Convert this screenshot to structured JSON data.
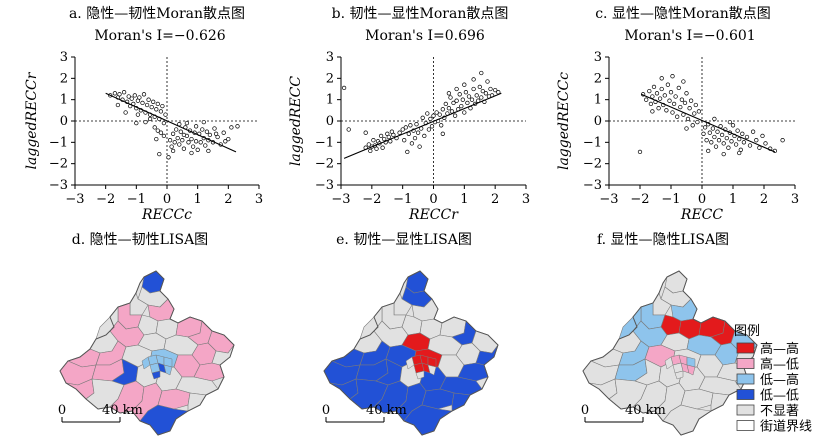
{
  "chart_data": [
    {
      "type": "scatter",
      "title": "a. 隐性—韧性Moran散点图",
      "annotation": "Moran's I=−0.626",
      "xlabel": "RECCc",
      "ylabel": "laggedRECCr",
      "xlim": [
        -3,
        3
      ],
      "ylim": [
        -3,
        3
      ],
      "xticks": [
        "−3",
        "−2",
        "−1",
        "0",
        "1",
        "2",
        "3"
      ],
      "yticks": [
        "−3",
        "−2",
        "−1",
        "0",
        "1",
        "2",
        "3"
      ],
      "fit_line": [
        [
          -2.0,
          1.3
        ],
        [
          2.25,
          -1.45
        ]
      ],
      "points": [
        [
          -1.85,
          1.2
        ],
        [
          -1.7,
          1.3
        ],
        [
          -1.6,
          1.1
        ],
        [
          -1.55,
          1.25
        ],
        [
          -1.45,
          1.0
        ],
        [
          -1.4,
          1.35
        ],
        [
          -1.3,
          0.9
        ],
        [
          -1.25,
          1.15
        ],
        [
          -1.2,
          0.7
        ],
        [
          -1.15,
          1.05
        ],
        [
          -1.1,
          0.8
        ],
        [
          -1.05,
          1.2
        ],
        [
          -1.0,
          0.6
        ],
        [
          -0.95,
          0.95
        ],
        [
          -0.9,
          1.1
        ],
        [
          -0.85,
          0.5
        ],
        [
          -0.8,
          0.85
        ],
        [
          -0.75,
          1.25
        ],
        [
          -0.7,
          0.4
        ],
        [
          -0.65,
          0.75
        ],
        [
          -0.6,
          1.0
        ],
        [
          -0.55,
          0.3
        ],
        [
          -0.5,
          0.65
        ],
        [
          -0.45,
          0.9
        ],
        [
          -0.4,
          0.2
        ],
        [
          -0.35,
          0.55
        ],
        [
          -0.3,
          0.8
        ],
        [
          -0.25,
          0.1
        ],
        [
          -0.2,
          0.45
        ],
        [
          -0.15,
          0.7
        ],
        [
          -0.1,
          -0.1
        ],
        [
          -0.05,
          0.3
        ],
        [
          -1.35,
          0.4
        ],
        [
          -0.95,
          0.3
        ],
        [
          -0.7,
          -0.05
        ],
        [
          -0.55,
          0.1
        ],
        [
          -1.0,
          -0.1
        ],
        [
          -1.6,
          0.75
        ],
        [
          -0.4,
          -0.3
        ],
        [
          -0.3,
          -0.45
        ],
        [
          -0.2,
          -0.55
        ],
        [
          -0.35,
          -0.85
        ],
        [
          -0.25,
          -1.55
        ],
        [
          0.1,
          -0.9
        ],
        [
          0.15,
          -1.2
        ],
        [
          0.2,
          -0.6
        ],
        [
          0.25,
          -1.0
        ],
        [
          0.3,
          -0.4
        ],
        [
          0.35,
          -0.8
        ],
        [
          0.4,
          -1.1
        ],
        [
          0.45,
          -0.5
        ],
        [
          0.5,
          -0.9
        ],
        [
          0.55,
          -1.3
        ],
        [
          0.6,
          -0.3
        ],
        [
          0.65,
          -0.7
        ],
        [
          0.7,
          -1.0
        ],
        [
          0.75,
          -0.45
        ],
        [
          0.8,
          -0.85
        ],
        [
          0.85,
          -1.2
        ],
        [
          0.9,
          -0.55
        ],
        [
          0.95,
          -0.95
        ],
        [
          1.0,
          -1.35
        ],
        [
          1.05,
          -0.6
        ],
        [
          1.1,
          -1.0
        ],
        [
          1.15,
          -0.4
        ],
        [
          1.2,
          -0.8
        ],
        [
          1.25,
          -1.15
        ],
        [
          1.3,
          -0.5
        ],
        [
          1.35,
          -0.9
        ],
        [
          1.4,
          -0.65
        ],
        [
          1.5,
          -1.0
        ],
        [
          1.55,
          -0.35
        ],
        [
          1.65,
          -0.75
        ],
        [
          1.75,
          -1.1
        ],
        [
          1.85,
          -0.55
        ],
        [
          2.0,
          -0.85
        ],
        [
          2.1,
          -0.3
        ],
        [
          2.3,
          -0.25
        ],
        [
          0.4,
          -0.15
        ],
        [
          0.65,
          -0.1
        ],
        [
          0.95,
          -0.25
        ],
        [
          1.2,
          -0.05
        ],
        [
          0.2,
          -1.4
        ],
        [
          0.8,
          -1.5
        ],
        [
          1.35,
          -1.4
        ],
        [
          0.05,
          -1.7
        ],
        [
          -0.1,
          -0.7
        ],
        [
          0.55,
          -0.65
        ],
        [
          1.6,
          -0.6
        ],
        [
          1.9,
          -0.95
        ]
      ]
    },
    {
      "type": "scatter",
      "title": "b. 韧性—显性Moran散点图",
      "annotation": "Moran's I=0.696",
      "xlabel": "RECCr",
      "ylabel": "laggedRECC",
      "xlim": [
        -3,
        3
      ],
      "ylim": [
        -3,
        3
      ],
      "xticks": [
        "−3",
        "−2",
        "−1",
        "0",
        "1",
        "2",
        "3"
      ],
      "yticks": [
        "−3",
        "−2",
        "−1",
        "0",
        "1",
        "2",
        "3"
      ],
      "fit_line": [
        [
          -2.9,
          -1.75
        ],
        [
          2.2,
          1.3
        ]
      ],
      "points": [
        [
          -2.9,
          1.55
        ],
        [
          -2.2,
          -0.55
        ],
        [
          -2.2,
          -1.25
        ],
        [
          -2.1,
          -1.1
        ],
        [
          -2.05,
          -1.4
        ],
        [
          -2.0,
          -1.2
        ],
        [
          -1.95,
          -0.9
        ],
        [
          -1.9,
          -1.15
        ],
        [
          -1.85,
          -1.3
        ],
        [
          -1.8,
          -0.95
        ],
        [
          -1.75,
          -1.05
        ],
        [
          -1.7,
          -0.7
        ],
        [
          -1.65,
          -1.25
        ],
        [
          -1.6,
          -0.85
        ],
        [
          -1.55,
          -1.0
        ],
        [
          -1.5,
          -0.6
        ],
        [
          -1.45,
          -0.75
        ],
        [
          -1.4,
          -0.95
        ],
        [
          -1.35,
          -0.5
        ],
        [
          -1.3,
          -0.65
        ],
        [
          -1.2,
          -0.8
        ],
        [
          -1.1,
          -0.55
        ],
        [
          -1.0,
          -0.4
        ],
        [
          -0.95,
          -0.9
        ],
        [
          -0.9,
          -0.3
        ],
        [
          -0.85,
          -1.45
        ],
        [
          -0.8,
          -0.6
        ],
        [
          -0.75,
          -0.2
        ],
        [
          -0.7,
          -1.05
        ],
        [
          -0.65,
          -0.45
        ],
        [
          -0.6,
          -0.8
        ],
        [
          -0.55,
          -0.15
        ],
        [
          -0.5,
          -0.55
        ],
        [
          -0.45,
          -1.2
        ],
        [
          -0.4,
          -0.35
        ],
        [
          -0.35,
          0.15
        ],
        [
          -0.3,
          -0.7
        ],
        [
          -0.25,
          -0.1
        ],
        [
          -0.2,
          0.35
        ],
        [
          -0.15,
          -0.4
        ],
        [
          -0.1,
          0.1
        ],
        [
          -0.05,
          -0.25
        ],
        [
          0.0,
          0.25
        ],
        [
          0.05,
          -0.05
        ],
        [
          0.1,
          0.4
        ],
        [
          0.15,
          0.0
        ],
        [
          0.2,
          0.3
        ],
        [
          0.25,
          -0.2
        ],
        [
          0.3,
          0.55
        ],
        [
          0.35,
          0.15
        ],
        [
          0.4,
          0.8
        ],
        [
          0.45,
          0.35
        ],
        [
          0.5,
          0.6
        ],
        [
          0.55,
          1.1
        ],
        [
          0.6,
          0.45
        ],
        [
          0.65,
          0.85
        ],
        [
          0.7,
          0.25
        ],
        [
          0.75,
          0.95
        ],
        [
          0.8,
          0.55
        ],
        [
          0.85,
          1.25
        ],
        [
          0.9,
          0.7
        ],
        [
          0.95,
          1.0
        ],
        [
          1.0,
          0.4
        ],
        [
          1.05,
          1.35
        ],
        [
          1.1,
          0.85
        ],
        [
          1.15,
          1.15
        ],
        [
          1.2,
          0.6
        ],
        [
          1.25,
          1.0
        ],
        [
          1.3,
          1.5
        ],
        [
          1.35,
          0.8
        ],
        [
          1.4,
          1.2
        ],
        [
          1.45,
          0.95
        ],
        [
          1.5,
          1.6
        ],
        [
          1.55,
          1.1
        ],
        [
          1.6,
          1.4
        ],
        [
          1.65,
          0.9
        ],
        [
          1.7,
          1.3
        ],
        [
          1.75,
          1.85
        ],
        [
          1.8,
          1.15
        ],
        [
          1.85,
          1.5
        ],
        [
          1.9,
          1.2
        ],
        [
          2.0,
          1.45
        ],
        [
          2.1,
          1.35
        ],
        [
          1.55,
          2.25
        ],
        [
          1.3,
          1.95
        ],
        [
          1.0,
          1.7
        ],
        [
          0.75,
          1.5
        ],
        [
          0.5,
          1.3
        ],
        [
          -2.75,
          -0.4
        ],
        [
          0.3,
          -0.6
        ]
      ]
    },
    {
      "type": "scatter",
      "title": "c. 显性—隐性Moran散点图",
      "annotation": "Moran's I=−0.601",
      "xlabel": "RECC",
      "ylabel": "laggedRECCc",
      "xlim": [
        -3,
        3
      ],
      "ylim": [
        -3,
        3
      ],
      "xticks": [
        "−3",
        "−2",
        "−1",
        "0",
        "1",
        "2",
        "3"
      ],
      "yticks": [
        "−3",
        "−2",
        "−1",
        "0",
        "1",
        "2",
        "3"
      ],
      "fit_line": [
        [
          -1.95,
          1.25
        ],
        [
          2.35,
          -1.45
        ]
      ],
      "points": [
        [
          -1.9,
          1.25
        ],
        [
          -1.8,
          1.0
        ],
        [
          -1.7,
          1.4
        ],
        [
          -1.65,
          0.8
        ],
        [
          -1.6,
          1.15
        ],
        [
          -1.55,
          1.6
        ],
        [
          -1.5,
          0.9
        ],
        [
          -1.45,
          1.3
        ],
        [
          -1.4,
          0.6
        ],
        [
          -1.35,
          1.05
        ],
        [
          -1.3,
          1.5
        ],
        [
          -1.25,
          0.75
        ],
        [
          -1.2,
          1.2
        ],
        [
          -1.15,
          0.5
        ],
        [
          -1.1,
          1.7
        ],
        [
          -1.05,
          0.95
        ],
        [
          -1.0,
          1.35
        ],
        [
          -0.95,
          0.4
        ],
        [
          -0.9,
          0.8
        ],
        [
          -0.85,
          1.15
        ],
        [
          -0.8,
          0.2
        ],
        [
          -0.75,
          1.55
        ],
        [
          -0.7,
          0.65
        ],
        [
          -0.65,
          1.0
        ],
        [
          -0.6,
          0.3
        ],
        [
          -0.55,
          0.85
        ],
        [
          -0.5,
          1.3
        ],
        [
          -0.45,
          0.1
        ],
        [
          -0.4,
          0.6
        ],
        [
          -0.35,
          0.95
        ],
        [
          -0.3,
          -0.2
        ],
        [
          -0.25,
          0.35
        ],
        [
          -0.2,
          0.75
        ],
        [
          -0.15,
          -0.05
        ],
        [
          -0.1,
          0.45
        ],
        [
          -1.3,
          2.0
        ],
        [
          -0.95,
          2.1
        ],
        [
          -0.6,
          1.85
        ],
        [
          -1.6,
          0.45
        ],
        [
          -2.0,
          -1.45
        ],
        [
          -0.5,
          -0.35
        ],
        [
          0.05,
          -0.6
        ],
        [
          0.1,
          -0.3
        ],
        [
          0.15,
          -0.9
        ],
        [
          0.2,
          -0.15
        ],
        [
          0.25,
          -0.55
        ],
        [
          0.3,
          -1.0
        ],
        [
          0.35,
          -0.35
        ],
        [
          0.4,
          -0.75
        ],
        [
          0.45,
          -1.2
        ],
        [
          0.5,
          -0.5
        ],
        [
          0.55,
          -0.9
        ],
        [
          0.6,
          -0.25
        ],
        [
          0.65,
          -0.65
        ],
        [
          0.7,
          -1.05
        ],
        [
          0.75,
          -0.4
        ],
        [
          0.8,
          -0.8
        ],
        [
          0.85,
          -1.25
        ],
        [
          0.9,
          -0.55
        ],
        [
          0.95,
          -0.95
        ],
        [
          1.0,
          -0.2
        ],
        [
          1.05,
          -0.7
        ],
        [
          1.1,
          -1.1
        ],
        [
          1.15,
          -0.45
        ],
        [
          1.2,
          -0.85
        ],
        [
          1.25,
          -1.35
        ],
        [
          1.3,
          -0.6
        ],
        [
          1.35,
          -1.0
        ],
        [
          1.45,
          -0.75
        ],
        [
          1.55,
          -1.15
        ],
        [
          1.65,
          -0.5
        ],
        [
          1.75,
          -0.9
        ],
        [
          1.85,
          -1.25
        ],
        [
          1.95,
          -0.7
        ],
        [
          2.05,
          -1.05
        ],
        [
          2.2,
          -1.3
        ],
        [
          2.35,
          -1.4
        ],
        [
          2.6,
          -0.9
        ],
        [
          0.2,
          -1.4
        ],
        [
          0.7,
          -1.55
        ],
        [
          1.2,
          -1.5
        ],
        [
          0.4,
          0.1
        ],
        [
          0.9,
          -0.05
        ]
      ]
    },
    {
      "type": "map",
      "title": "d. 隐性—韧性LISA图",
      "scalebar": {
        "start": "0",
        "end": "40 km"
      }
    },
    {
      "type": "map",
      "title": "e. 韧性—显性LISA图",
      "scalebar": {
        "start": "0",
        "end": "40 km"
      }
    },
    {
      "type": "map",
      "title": "f. 显性—隐性LISA图",
      "scalebar": {
        "start": "0",
        "end": "40 km"
      }
    }
  ],
  "legend": {
    "title": "图例",
    "items": [
      {
        "label": "高—高",
        "color": "#e31a1c"
      },
      {
        "label": "高—低",
        "color": "#f4a6c6"
      },
      {
        "label": "低—高",
        "color": "#8ec4ec"
      },
      {
        "label": "低—低",
        "color": "#2251d6"
      },
      {
        "label": "不显著",
        "color": "#e1e1e1"
      },
      {
        "label": "街道界线",
        "color": "#ffffff"
      }
    ]
  },
  "colors": {
    "base": "#e1e1e1",
    "boundary": "#7a7a7a"
  }
}
